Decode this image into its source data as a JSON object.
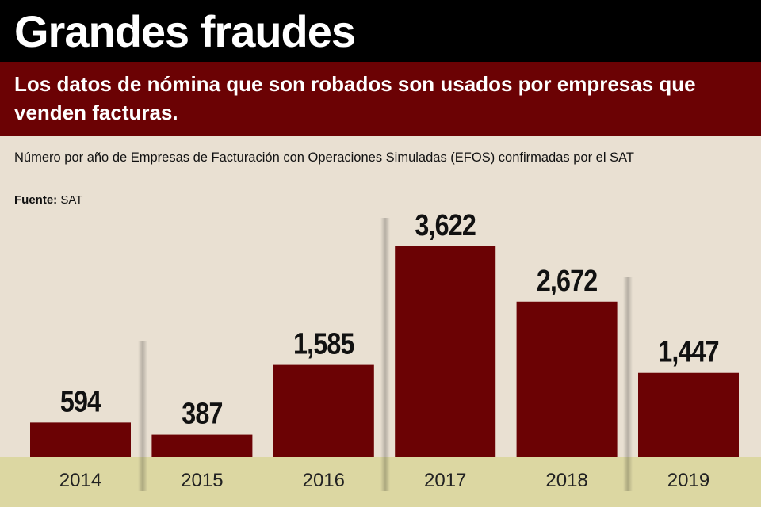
{
  "header": {
    "title": "Grandes fraudes",
    "subtitle": "Los datos de nómina que son robados son usados por empresas que venden facturas."
  },
  "description": "Número por año de Empresas de Facturación con Operaciones Simuladas (EFOS) confirmadas por el SAT",
  "source": {
    "label": "Fuente:",
    "value": "SAT"
  },
  "chart_data": {
    "type": "bar",
    "categories": [
      "2014",
      "2015",
      "2016",
      "2017",
      "2018",
      "2019"
    ],
    "values": [
      594,
      387,
      1585,
      3622,
      2672,
      1447
    ],
    "data_labels": [
      "594",
      "387",
      "1,585",
      "3,622",
      "2,672",
      "1,447"
    ],
    "title": "",
    "xlabel": "",
    "ylabel": "",
    "ylim": [
      0,
      3622
    ],
    "grid": false,
    "colors": {
      "bar": "#6b0204",
      "baseline_band": "#dcd7a2",
      "background": "#e9e0d2"
    }
  }
}
